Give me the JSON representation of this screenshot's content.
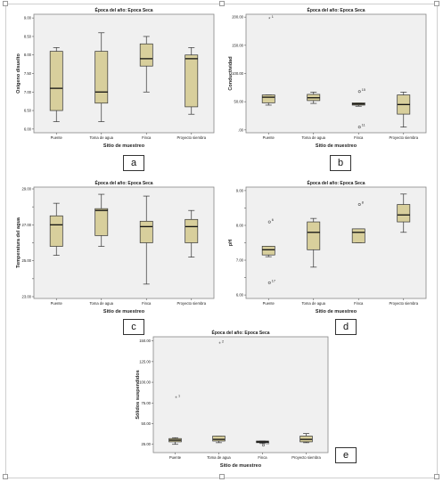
{
  "theme": {
    "plot_bg": "#f0f0f0",
    "box_fill": "#d8cf9c",
    "box_stroke": "#333333",
    "outlier": "#555555"
  },
  "panel_labels": [
    "a",
    "b",
    "c",
    "d",
    "e"
  ],
  "chart_data": [
    {
      "id": "a",
      "type": "box",
      "title": "Época del año: Epoca Seca",
      "xlabel": "Sitio de muestreo",
      "ylabel": "Oxígeno disuelto",
      "categories": [
        "Puente",
        "Toma de agua",
        "Finca",
        "Proyecto siembra"
      ],
      "ylim": [
        5.9,
        9.1
      ],
      "yticks": [
        6.0,
        6.5,
        7.0,
        7.5,
        8.0,
        8.5,
        9.0
      ],
      "ytick_labels": [
        "6.00",
        "6.50",
        "7.00",
        "7.50",
        "8.00",
        "8.50",
        "9.00"
      ],
      "boxes": [
        {
          "min": 6.2,
          "q1": 6.5,
          "median": 7.1,
          "q3": 8.1,
          "max": 8.2
        },
        {
          "min": 6.2,
          "q1": 6.7,
          "median": 7.0,
          "q3": 8.1,
          "max": 8.6
        },
        {
          "min": 7.0,
          "q1": 7.7,
          "median": 7.9,
          "q3": 8.3,
          "max": 8.5
        },
        {
          "min": 6.4,
          "q1": 6.6,
          "median": 7.9,
          "q3": 8.0,
          "max": 8.2
        }
      ],
      "outliers": []
    },
    {
      "id": "b",
      "type": "box",
      "title": "Época del año: Epoca Seca",
      "xlabel": "Sitio de muestreo",
      "ylabel": "Conductividad",
      "categories": [
        "Puente",
        "Toma de agua",
        "Finca",
        "Proyecto siembra"
      ],
      "ylim": [
        -5,
        205
      ],
      "yticks": [
        0,
        50,
        100,
        150,
        200
      ],
      "ytick_labels": [
        ".00",
        "50.00",
        "100.00",
        "150.00",
        "200.00"
      ],
      "boxes": [
        {
          "min": 44,
          "q1": 48,
          "median": 58,
          "q3": 62,
          "max": 62
        },
        {
          "min": 47,
          "q1": 52,
          "median": 57,
          "q3": 63,
          "max": 67
        },
        {
          "min": 42,
          "q1": 44,
          "median": 46,
          "q3": 48,
          "max": 48
        },
        {
          "min": 5,
          "q1": 28,
          "median": 45,
          "q3": 62,
          "max": 67
        }
      ],
      "outliers": [
        {
          "cat": 0,
          "value": 197,
          "label": "1",
          "marker": "star"
        },
        {
          "cat": 2,
          "value": 68,
          "label": "15",
          "marker": "circle"
        },
        {
          "cat": 2,
          "value": 5,
          "label": "11",
          "marker": "circle"
        }
      ]
    },
    {
      "id": "c",
      "type": "box",
      "title": "Época del año: Epoca Seca",
      "xlabel": "Sitio de muestreo",
      "ylabel": "Temperatura del agua",
      "categories": [
        "Puente",
        "Toma de agua",
        "Finca",
        "Proyecto siembra"
      ],
      "ylim": [
        22.9,
        29.1
      ],
      "yticks": [
        23,
        24,
        25,
        26,
        27,
        28,
        29
      ],
      "ytick_labels": [
        "23.00",
        "",
        "25.00",
        "",
        "27.00",
        "",
        "29.00"
      ],
      "boxes": [
        {
          "min": 25.3,
          "q1": 25.8,
          "median": 27.0,
          "q3": 27.5,
          "max": 28.2
        },
        {
          "min": 25.8,
          "q1": 26.4,
          "median": 27.8,
          "q3": 27.9,
          "max": 28.7
        },
        {
          "min": 23.7,
          "q1": 26.0,
          "median": 26.9,
          "q3": 27.2,
          "max": 28.6
        },
        {
          "min": 25.2,
          "q1": 26.0,
          "median": 26.9,
          "q3": 27.3,
          "max": 27.8
        }
      ],
      "outliers": []
    },
    {
      "id": "d",
      "type": "box",
      "title": "Época del año: Epoca Seca",
      "xlabel": "Sitio de muestreo",
      "ylabel": "pH",
      "categories": [
        "Puente",
        "Toma de agua",
        "Finca",
        "Proyecto siembra"
      ],
      "ylim": [
        5.9,
        9.1
      ],
      "yticks": [
        6.0,
        6.5,
        7.0,
        7.5,
        8.0,
        8.5,
        9.0
      ],
      "ytick_labels": [
        "6.00",
        "",
        "7.00",
        "",
        "8.00",
        "",
        "9.00"
      ],
      "boxes": [
        {
          "min": 7.1,
          "q1": 7.15,
          "median": 7.3,
          "q3": 7.4,
          "max": 7.4
        },
        {
          "min": 6.8,
          "q1": 7.3,
          "median": 7.8,
          "q3": 8.1,
          "max": 8.2
        },
        {
          "min": 7.5,
          "q1": 7.5,
          "median": 7.8,
          "q3": 7.9,
          "max": 7.9
        },
        {
          "min": 7.8,
          "q1": 8.1,
          "median": 8.3,
          "q3": 8.6,
          "max": 8.9
        }
      ],
      "outliers": [
        {
          "cat": 0,
          "value": 8.1,
          "label": "6",
          "marker": "circle"
        },
        {
          "cat": 0,
          "value": 6.35,
          "label": "17",
          "marker": "circle"
        },
        {
          "cat": 2,
          "value": 8.6,
          "label": "8",
          "marker": "circle"
        }
      ]
    },
    {
      "id": "e",
      "type": "box",
      "title": "Época del año: Epoca Seca",
      "xlabel": "Sitio de muestreo",
      "ylabel": "Sólidos suspendidos",
      "categories": [
        "Puente",
        "Toma de agua",
        "Finca",
        "Proyecto siembra"
      ],
      "ylim": [
        15,
        155
      ],
      "yticks": [
        25,
        50,
        75,
        100,
        125,
        150
      ],
      "ytick_labels": [
        "25.00",
        "50.00",
        "75.00",
        "100.00",
        "125.00",
        "150.00"
      ],
      "boxes": [
        {
          "min": 25,
          "q1": 28,
          "median": 30,
          "q3": 32,
          "max": 33
        },
        {
          "min": 27,
          "q1": 29,
          "median": 31,
          "q3": 35,
          "max": 35
        },
        {
          "min": 26,
          "q1": 27,
          "median": 28,
          "q3": 29,
          "max": 29
        },
        {
          "min": 27,
          "q1": 28,
          "median": 31,
          "q3": 35,
          "max": 38
        }
      ],
      "outliers": [
        {
          "cat": 0,
          "value": 81,
          "label": "1",
          "marker": "star"
        },
        {
          "cat": 1,
          "value": 147,
          "label": "2",
          "marker": "star"
        },
        {
          "cat": 2,
          "value": 24,
          "label": "15",
          "marker": "circle"
        }
      ]
    }
  ]
}
